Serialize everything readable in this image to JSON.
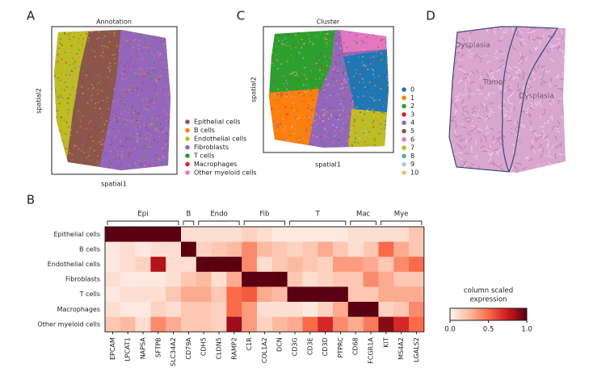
{
  "chart_data": [
    {
      "type": "spatial",
      "panel": "A",
      "title": "Annotation",
      "xlabel": "spatial1",
      "ylabel": "spatial2",
      "series": [
        {
          "name": "Epithelial cells",
          "color": "#8c564b"
        },
        {
          "name": "B cells",
          "color": "#ff7f0e"
        },
        {
          "name": "Endothelial cells",
          "color": "#bcbd22"
        },
        {
          "name": "Fibroblasts",
          "color": "#9467bd"
        },
        {
          "name": "T cells",
          "color": "#2ca02c"
        },
        {
          "name": "Macrophages",
          "color": "#d62728"
        },
        {
          "name": "Other myeloid cells",
          "color": "#e377c2"
        }
      ]
    },
    {
      "type": "spatial",
      "panel": "C",
      "title": "Cluster",
      "xlabel": "spatial1",
      "ylabel": "spatial2",
      "series": [
        {
          "name": "0",
          "color": "#1f77b4"
        },
        {
          "name": "1",
          "color": "#ff7f0e"
        },
        {
          "name": "2",
          "color": "#2ca02c"
        },
        {
          "name": "3",
          "color": "#d62728"
        },
        {
          "name": "4",
          "color": "#9467bd"
        },
        {
          "name": "5",
          "color": "#8c564b"
        },
        {
          "name": "6",
          "color": "#e377c2"
        },
        {
          "name": "7",
          "color": "#bcbd22"
        },
        {
          "name": "8",
          "color": "#5fa8a0"
        },
        {
          "name": "9",
          "color": "#aec7e8"
        },
        {
          "name": "10",
          "color": "#ffbb78"
        }
      ]
    },
    {
      "type": "image",
      "panel": "D",
      "labels": [
        "Dysplasia",
        "Tumor",
        "Dysplasia"
      ]
    },
    {
      "type": "heatmap",
      "panel": "B",
      "rows": [
        "Epithelial cells",
        "B cells",
        "Endothelial cells",
        "Fibroblasts",
        "T cells",
        "Macrophages",
        "Other myeloid cells"
      ],
      "columns": [
        "EPCAM",
        "LPCAT1",
        "NAPSA",
        "SFTPB",
        "SLC34A2",
        "CD79A",
        "CDH5",
        "CLDN5",
        "RAMP2",
        "C1R",
        "COL1A2",
        "DCN",
        "CD3G",
        "CD3E",
        "CD3D",
        "PTPRC",
        "CD68",
        "FCGR1A",
        "KIT",
        "MS4A2",
        "LGALS2"
      ],
      "groups": [
        {
          "label": "Epi",
          "size": 5
        },
        {
          "label": "B",
          "size": 1
        },
        {
          "label": "Endo",
          "size": 3
        },
        {
          "label": "Fib",
          "size": 3
        },
        {
          "label": "T",
          "size": 4
        },
        {
          "label": "Mac",
          "size": 2
        },
        {
          "label": "Mye",
          "size": 3
        }
      ],
      "values": [
        [
          1,
          1,
          1,
          1,
          1,
          0.1,
          0.1,
          0.1,
          0.1,
          0.15,
          0.1,
          0.05,
          0.05,
          0.05,
          0.05,
          0.05,
          0.1,
          0.1,
          0.1,
          0.1,
          0.2
        ],
        [
          0.05,
          0.1,
          0.05,
          0.1,
          0.1,
          1,
          0.15,
          0.2,
          0.25,
          0.4,
          0.25,
          0.2,
          0.15,
          0.2,
          0.3,
          0.2,
          0.1,
          0.2,
          0.5,
          0.3,
          0.2
        ],
        [
          0.05,
          0.1,
          0.15,
          0.8,
          0.1,
          0.1,
          1,
          1,
          1,
          0.4,
          0.1,
          0.2,
          0.25,
          0.2,
          0.15,
          0.35,
          0.35,
          0.3,
          0.2,
          0.4,
          0.5
        ],
        [
          0.1,
          0.05,
          0.05,
          0.05,
          0.1,
          0.2,
          0.25,
          0.1,
          0.3,
          1,
          1,
          1,
          0.2,
          0.1,
          0.15,
          0.2,
          0.2,
          0.4,
          0.3,
          0.2,
          0.2
        ],
        [
          0.05,
          0.1,
          0.1,
          0.1,
          0.2,
          0.3,
          0.3,
          0.2,
          0.5,
          0.55,
          0.3,
          0.25,
          1,
          1,
          1,
          1,
          0.2,
          0.2,
          0.3,
          0.3,
          0.3
        ],
        [
          0.1,
          0.05,
          0.05,
          0.15,
          0.1,
          0.2,
          0.2,
          0.15,
          0.5,
          0.35,
          0.1,
          0.1,
          0.1,
          0.05,
          0.15,
          0.3,
          1,
          1,
          0.15,
          0.2,
          0.4
        ],
        [
          0.2,
          0.25,
          0.1,
          0.4,
          0.3,
          0.2,
          0.2,
          0.15,
          0.85,
          0.35,
          0.15,
          0.25,
          0.3,
          0.5,
          0.7,
          0.4,
          0.3,
          0.45,
          0.9,
          0.7,
          0.5
        ]
      ],
      "colorbar": {
        "label": [
          "column scaled",
          "expression"
        ],
        "lim": [
          0,
          1
        ],
        "ticks": [
          {
            "value": 0,
            "label": "0.0"
          },
          {
            "value": 0.5,
            "label": "0.5"
          },
          {
            "value": 1,
            "label": "1.0"
          }
        ]
      }
    }
  ]
}
